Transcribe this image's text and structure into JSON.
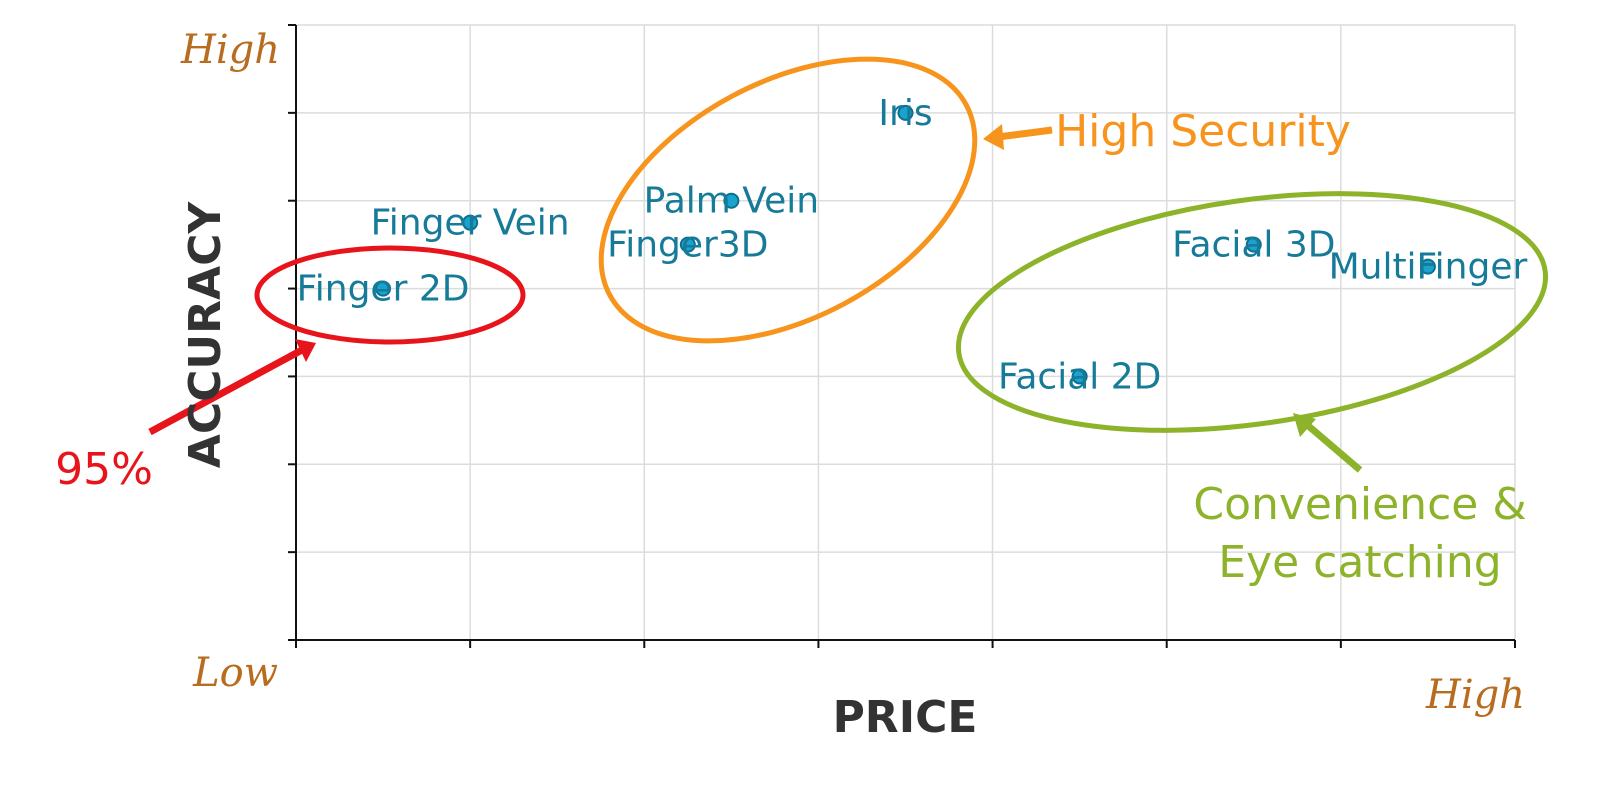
{
  "chart_data": {
    "type": "scatter",
    "x_label": "PRICE",
    "y_label": "ACCURACY",
    "xlim": [
      0,
      7
    ],
    "ylim": [
      0,
      7
    ],
    "xticks": [
      {
        "value": 0,
        "label": "Low"
      },
      1,
      2,
      3,
      4,
      5,
      6,
      {
        "value": 7,
        "label": "High"
      }
    ],
    "yticks": [
      0,
      1,
      2,
      3,
      4,
      5,
      6,
      {
        "value": 7,
        "label": "High"
      }
    ],
    "grid": true,
    "color": "#1aa3cf",
    "points": [
      {
        "label": "Finger 2D",
        "x": 0.5,
        "y": 4.0
      },
      {
        "label": "Finger Vein",
        "x": 1.0,
        "y": 4.75
      },
      {
        "label": "Finger3D",
        "x": 2.25,
        "y": 4.5
      },
      {
        "label": "Palm Vein",
        "x": 2.5,
        "y": 5.0
      },
      {
        "label": "Iris",
        "x": 3.5,
        "y": 6.0
      },
      {
        "label": "Facial 2D",
        "x": 4.5,
        "y": 3.0
      },
      {
        "label": "Facial 3D",
        "x": 5.5,
        "y": 4.5
      },
      {
        "label": "MultiFinger",
        "x": 6.5,
        "y": 4.25
      }
    ],
    "annotations": [
      {
        "lines": [
          "High Security"
        ],
        "color": "#f7941d"
      },
      {
        "lines": [
          "Convenience &",
          "Eye catching"
        ],
        "color": "#8db32a"
      },
      {
        "lines": [
          "95%"
        ],
        "color": "#e8141b"
      }
    ]
  }
}
